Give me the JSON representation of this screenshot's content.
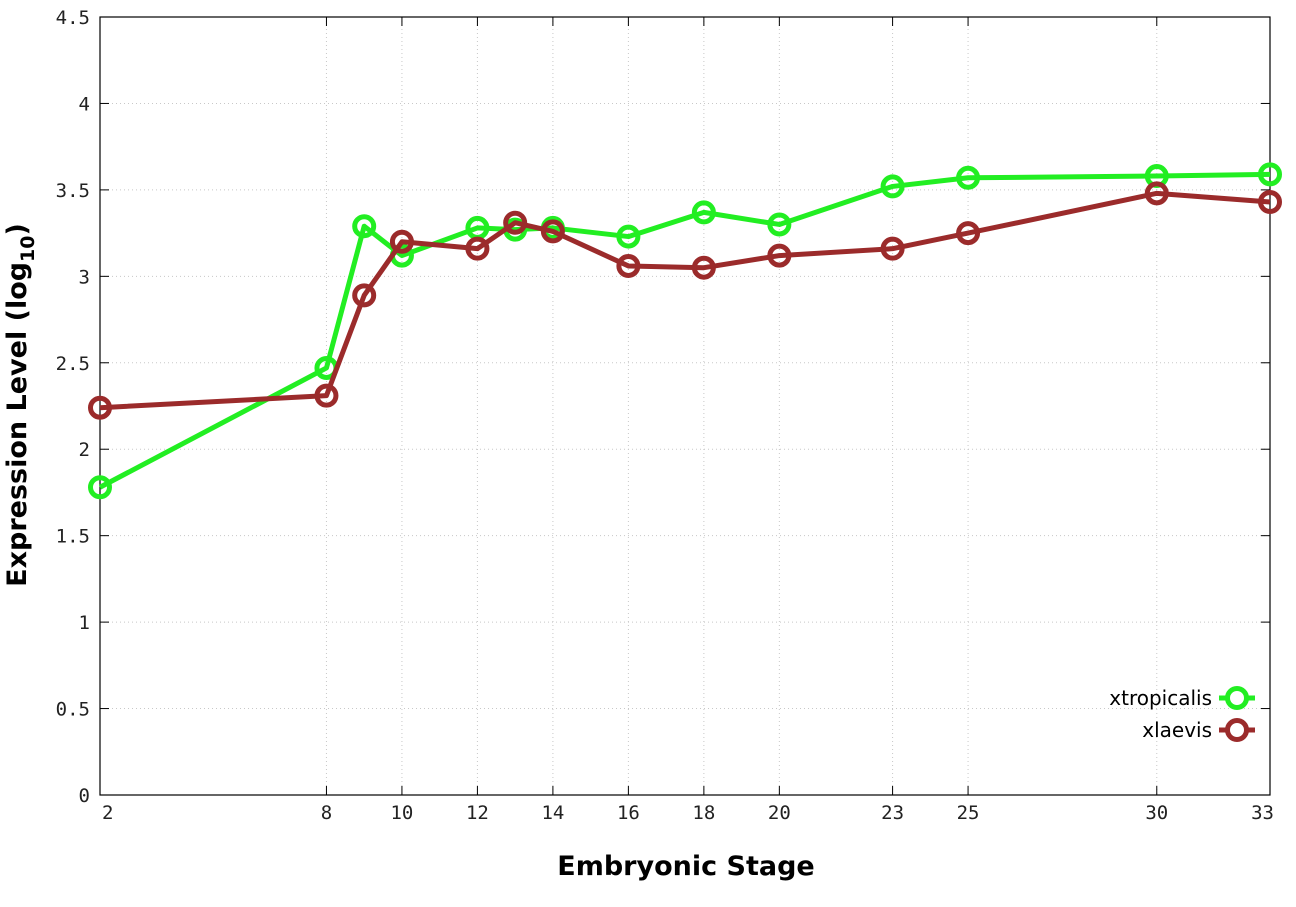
{
  "chart_data": {
    "type": "line",
    "xlabel": "Embryonic Stage",
    "ylabel": "Expression Level (log",
    "ylabel_subscript": "10",
    "ylabel_close": ")",
    "xlim": [
      2,
      33
    ],
    "ylim": [
      0,
      4.5
    ],
    "x_ticks": [
      2,
      8,
      10,
      12,
      14,
      16,
      18,
      20,
      23,
      25,
      30,
      33
    ],
    "y_ticks": [
      0,
      0.5,
      1,
      1.5,
      2,
      2.5,
      3,
      3.5,
      4,
      4.5
    ],
    "y_tick_labels": [
      "0",
      "0.5",
      "1",
      "1.5",
      "2",
      "2.5",
      "3",
      "3.5",
      "4",
      "4.5"
    ],
    "grid": true,
    "legend_position": "bottom-right",
    "x": [
      2,
      8,
      9,
      10,
      12,
      13,
      14,
      16,
      18,
      20,
      23,
      25,
      30,
      33
    ],
    "series": [
      {
        "name": "xtropicalis",
        "color": "#22ee22",
        "values": [
          1.78,
          2.47,
          3.29,
          3.12,
          3.28,
          3.27,
          3.28,
          3.23,
          3.37,
          3.3,
          3.52,
          3.57,
          3.58,
          3.59
        ]
      },
      {
        "name": "xlaevis",
        "color": "#9b2b2b",
        "values": [
          2.24,
          2.31,
          2.89,
          3.2,
          3.16,
          3.31,
          3.26,
          3.06,
          3.05,
          3.12,
          3.16,
          3.25,
          3.48,
          3.43
        ]
      }
    ]
  }
}
